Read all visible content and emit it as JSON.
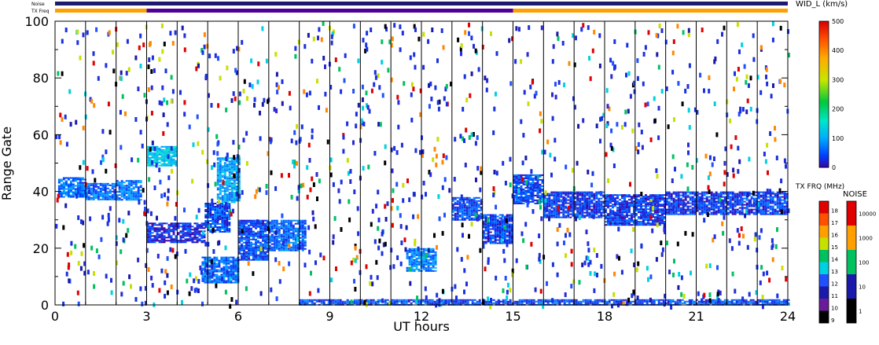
{
  "chart_data": {
    "type": "heatmap",
    "title": "",
    "xlabel": "UT hours",
    "ylabel": "Range Gate",
    "xlim": [
      0,
      24
    ],
    "ylim": [
      0,
      100
    ],
    "xticks": [
      0,
      3,
      6,
      9,
      12,
      15,
      18,
      21,
      24
    ],
    "yticks": [
      0,
      20,
      40,
      60,
      80,
      100
    ],
    "hour_gridlines": [
      1,
      2,
      3,
      4,
      5,
      6,
      7,
      8,
      9,
      10,
      11,
      12,
      13,
      14,
      15,
      16,
      17,
      18,
      19,
      20,
      21,
      22,
      23
    ],
    "strip_labels": {
      "noise": "Noise",
      "tx_freq": "TX Freq"
    },
    "tx_freq_strip": [
      {
        "x0": 0,
        "x1": 3,
        "color": "#ffa000"
      },
      {
        "x0": 3,
        "x1": 15,
        "color": "#50009a"
      },
      {
        "x0": 15,
        "x1": 24,
        "color": "#ffa000"
      }
    ],
    "noise_strip_color": "#1a1a6e",
    "echo_regions": [
      {
        "x0": 0.1,
        "x1": 1.0,
        "y0": 38,
        "y1": 45,
        "level": 60
      },
      {
        "x0": 1.0,
        "x1": 2.0,
        "y0": 37,
        "y1": 43,
        "level": 60
      },
      {
        "x0": 2.0,
        "x1": 2.8,
        "y0": 37,
        "y1": 44,
        "level": 60
      },
      {
        "x0": 3.0,
        "x1": 4.9,
        "y0": 22,
        "y1": 29,
        "level": 20
      },
      {
        "x0": 3.0,
        "x1": 4.0,
        "y0": 49,
        "y1": 56,
        "level": 120
      },
      {
        "x0": 4.9,
        "x1": 5.7,
        "y0": 26,
        "y1": 36,
        "level": 40
      },
      {
        "x0": 5.3,
        "x1": 6.0,
        "y0": 36,
        "y1": 52,
        "level": 90
      },
      {
        "x0": 4.8,
        "x1": 6.0,
        "y0": 8,
        "y1": 17,
        "level": 60
      },
      {
        "x0": 6.0,
        "x1": 7.0,
        "y0": 16,
        "y1": 30,
        "level": 40
      },
      {
        "x0": 7.0,
        "x1": 8.2,
        "y0": 19,
        "y1": 30,
        "level": 50
      },
      {
        "x0": 11.5,
        "x1": 12.5,
        "y0": 12,
        "y1": 20,
        "level": 70
      },
      {
        "x0": 13.0,
        "x1": 14.0,
        "y0": 30,
        "y1": 38,
        "level": 40
      },
      {
        "x0": 14.0,
        "x1": 15.0,
        "y0": 22,
        "y1": 32,
        "level": 30
      },
      {
        "x0": 15.0,
        "x1": 16.0,
        "y0": 36,
        "y1": 46,
        "level": 40
      },
      {
        "x0": 16.0,
        "x1": 18.0,
        "y0": 31,
        "y1": 40,
        "level": 30
      },
      {
        "x0": 18.0,
        "x1": 20.0,
        "y0": 28,
        "y1": 39,
        "level": 30
      },
      {
        "x0": 20.0,
        "x1": 24.0,
        "y0": 32,
        "y1": 40,
        "level": 30
      },
      {
        "x0": 8.0,
        "x1": 24.0,
        "y0": 0,
        "y1": 2,
        "level": 40
      }
    ],
    "width_colorbar": {
      "label": "WID_L (km/s)",
      "min": 0,
      "max": 500,
      "ticks": [
        0,
        100,
        200,
        300,
        400,
        500
      ]
    },
    "freq_colorbar": {
      "label": "TX FRQ (MHz)",
      "ticks": [
        9,
        10,
        11,
        12,
        13,
        14,
        15,
        16,
        17,
        18
      ],
      "colors": [
        "#000000",
        "#6a1b9a",
        "#1a1aaa",
        "#2050ff",
        "#00d0e0",
        "#00c060",
        "#c8e000",
        "#ffa000",
        "#ff5000",
        "#e00000"
      ]
    },
    "noise_colorbar": {
      "label": "NOISE",
      "ticks": [
        "1",
        "10",
        "100",
        "1000",
        "10000"
      ],
      "colors": [
        "#000000",
        "#1a1aaa",
        "#00c060",
        "#ffa000",
        "#e00000"
      ]
    }
  }
}
